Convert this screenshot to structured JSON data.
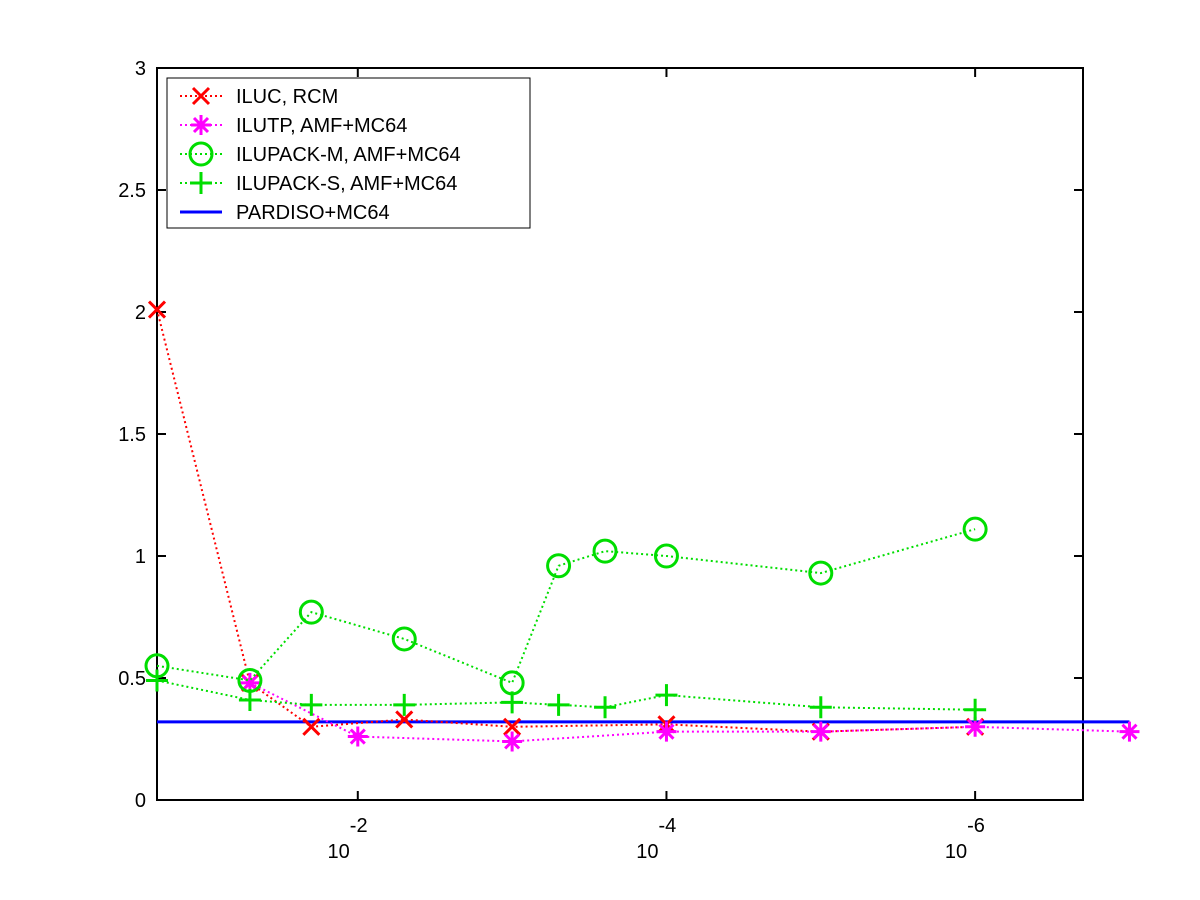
{
  "chart_data": {
    "type": "line",
    "x_scale": "log-reversed",
    "xlim": [
      0.2,
      2e-07
    ],
    "ylim": [
      0,
      3
    ],
    "x_ticks": [
      {
        "value": 0.01,
        "base": "10",
        "exp": "-2"
      },
      {
        "value": 0.0001,
        "base": "10",
        "exp": "-4"
      },
      {
        "value": 1e-06,
        "base": "10",
        "exp": "-6"
      }
    ],
    "y_ticks": [
      {
        "value": 0,
        "label": "0"
      },
      {
        "value": 0.5,
        "label": "0.5"
      },
      {
        "value": 1,
        "label": "1"
      },
      {
        "value": 1.5,
        "label": "1.5"
      },
      {
        "value": 2,
        "label": "2"
      },
      {
        "value": 2.5,
        "label": "2.5"
      },
      {
        "value": 3,
        "label": "3"
      }
    ],
    "legend_position": "top-left",
    "series": [
      {
        "name": "ILUC, RCM",
        "color": "#ff0000",
        "marker": "x",
        "line": "dotted",
        "x": [
          0.2,
          0.05,
          0.02,
          0.005,
          0.001,
          0.0001,
          1e-05,
          1e-06
        ],
        "y": [
          2.01,
          0.48,
          0.3,
          0.33,
          0.3,
          0.31,
          0.28,
          0.3
        ]
      },
      {
        "name": "ILUTP, AMF+MC64",
        "color": "#ff00ff",
        "marker": "asterisk",
        "line": "dotted",
        "x": [
          0.05,
          0.01,
          0.001,
          0.0001,
          1e-05,
          1e-06,
          1e-07
        ],
        "y": [
          0.48,
          0.26,
          0.24,
          0.28,
          0.28,
          0.3,
          0.28
        ]
      },
      {
        "name": "ILUPACK-M, AMF+MC64",
        "color": "#00dd00",
        "marker": "circle",
        "line": "dotted",
        "x": [
          0.2,
          0.05,
          0.02,
          0.005,
          0.001,
          0.0005,
          0.00025,
          0.0001,
          1e-05,
          1e-06
        ],
        "y": [
          0.55,
          0.49,
          0.77,
          0.66,
          0.48,
          0.96,
          1.02,
          1.0,
          0.93,
          1.11
        ]
      },
      {
        "name": "ILUPACK-S, AMF+MC64",
        "color": "#00dd00",
        "marker": "plus",
        "line": "dotted",
        "x": [
          0.2,
          0.05,
          0.02,
          0.005,
          0.001,
          0.0005,
          0.00025,
          0.0001,
          1e-05,
          1e-06
        ],
        "y": [
          0.49,
          0.41,
          0.39,
          0.39,
          0.4,
          0.39,
          0.38,
          0.43,
          0.38,
          0.37
        ]
      },
      {
        "name": "PARDISO+MC64",
        "color": "#0000ff",
        "marker": "none",
        "line": "solid",
        "x": [
          0.2,
          1e-07
        ],
        "y": [
          0.32,
          0.32
        ]
      }
    ]
  }
}
